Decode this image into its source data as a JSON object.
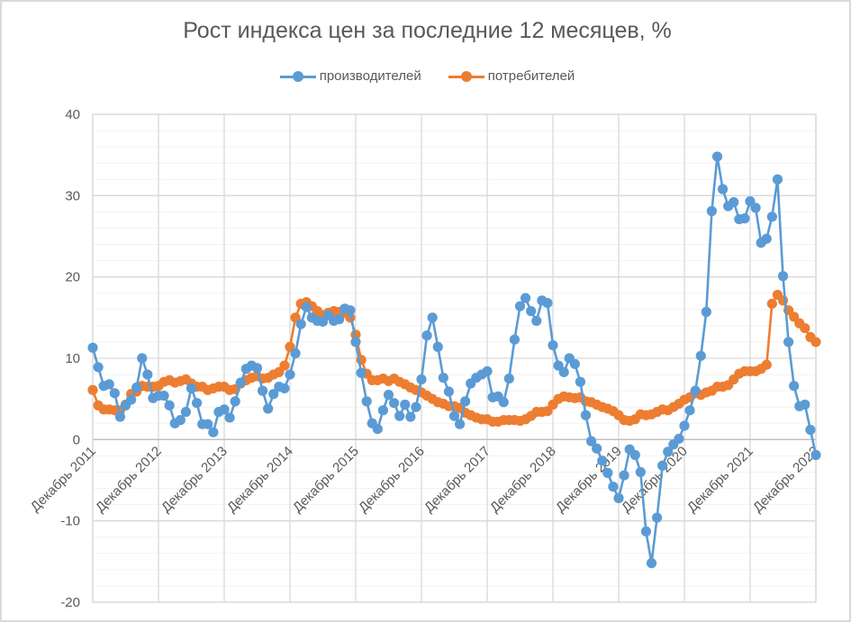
{
  "chart_data": {
    "type": "line",
    "title": "Рост индекса цен за последние 12 месяцев, %",
    "xlabel": "",
    "ylabel": "",
    "ylim": [
      -20,
      40
    ],
    "yticks": [
      -20,
      -10,
      0,
      10,
      20,
      30,
      40
    ],
    "y_minor_step": 2,
    "grid": true,
    "legend_position": "top",
    "x_start": "Декабрь 2011",
    "x_end": "Декабрь 2022",
    "x_frequency": "monthly",
    "x_tick_labels": [
      "Декабрь 2011",
      "Декабрь 2012",
      "Декабрь 2013",
      "Декабрь 2014",
      "Декабрь 2015",
      "Декабрь 2016",
      "Декабрь 2017",
      "Декабрь 2018",
      "Декабрь 2019",
      "Декабрь 2020",
      "Декабрь 2021",
      "Декабрь 2022"
    ],
    "series": [
      {
        "name": "производителей",
        "color": "#5b9bd5",
        "values": [
          11.3,
          8.9,
          6.6,
          6.8,
          5.7,
          2.8,
          4.2,
          4.9,
          6.4,
          10.0,
          8.0,
          5.1,
          5.4,
          5.4,
          4.2,
          2.0,
          2.4,
          3.4,
          6.3,
          4.5,
          1.9,
          1.9,
          0.9,
          3.4,
          3.7,
          2.7,
          4.7,
          7.0,
          8.7,
          9.1,
          8.8,
          6.0,
          3.8,
          5.6,
          6.5,
          6.3,
          8.0,
          10.6,
          14.2,
          16.3,
          15.0,
          14.6,
          14.5,
          15.3,
          14.6,
          14.8,
          16.1,
          15.9,
          12.0,
          8.2,
          4.7,
          2.0,
          1.3,
          3.6,
          5.5,
          4.5,
          2.9,
          4.3,
          2.8,
          4.0,
          7.4,
          12.8,
          15.0,
          11.4,
          7.6,
          5.9,
          2.9,
          1.9,
          4.7,
          6.9,
          7.6,
          8.0,
          8.4,
          5.2,
          5.3,
          4.6,
          7.5,
          12.3,
          16.4,
          17.4,
          15.8,
          14.6,
          17.1,
          16.8,
          11.6,
          9.1,
          8.3,
          10.0,
          9.3,
          7.1,
          3.0,
          -0.2,
          -1.1,
          -2.6,
          -4.1,
          -5.8,
          -7.2,
          -4.4,
          -1.2,
          -1.9,
          -4.0,
          -11.3,
          -15.2,
          -9.6,
          -3.2,
          -1.5,
          -0.6,
          0.1,
          1.7,
          3.6,
          6.0,
          10.3,
          15.7,
          28.1,
          34.8,
          30.8,
          28.7,
          29.2,
          27.1,
          27.2,
          29.3,
          28.5,
          24.2,
          24.7,
          27.4,
          32.0,
          20.1,
          12.0,
          6.6,
          4.1,
          4.3,
          1.2,
          -1.9
        ]
      },
      {
        "name": "потребителей",
        "color": "#ed7d31",
        "values": [
          6.1,
          4.2,
          3.7,
          3.7,
          3.6,
          3.6,
          4.3,
          5.6,
          5.9,
          6.6,
          6.5,
          6.5,
          6.6,
          7.1,
          7.3,
          7.0,
          7.2,
          7.4,
          6.9,
          6.5,
          6.5,
          6.1,
          6.3,
          6.5,
          6.5,
          6.1,
          6.2,
          6.9,
          7.3,
          7.6,
          7.8,
          7.5,
          7.6,
          8.0,
          8.3,
          9.1,
          11.4,
          15.0,
          16.7,
          16.9,
          16.4,
          15.8,
          15.3,
          15.6,
          15.8,
          15.7,
          15.6,
          15.0,
          12.9,
          9.8,
          8.1,
          7.3,
          7.3,
          7.5,
          7.2,
          7.5,
          7.1,
          6.8,
          6.4,
          6.1,
          5.8,
          5.4,
          5.0,
          4.6,
          4.4,
          4.1,
          4.1,
          3.9,
          3.3,
          3.0,
          2.7,
          2.5,
          2.5,
          2.2,
          2.2,
          2.4,
          2.4,
          2.4,
          2.3,
          2.5,
          2.9,
          3.4,
          3.4,
          3.5,
          4.3,
          5.0,
          5.3,
          5.2,
          5.1,
          5.2,
          4.7,
          4.6,
          4.3,
          4.0,
          3.8,
          3.5,
          3.0,
          2.4,
          2.3,
          2.5,
          3.1,
          3.0,
          3.1,
          3.4,
          3.7,
          3.6,
          4.0,
          4.4,
          4.9,
          5.2,
          5.7,
          5.5,
          5.8,
          6.0,
          6.5,
          6.5,
          6.7,
          7.4,
          8.1,
          8.4,
          8.4,
          8.4,
          8.7,
          9.2,
          16.7,
          17.8,
          17.1,
          15.9,
          15.1,
          14.3,
          13.7,
          12.6,
          12.0
        ]
      }
    ]
  },
  "legend": {
    "items": [
      {
        "label": "производителей",
        "color": "#5b9bd5"
      },
      {
        "label": "потребителей",
        "color": "#ed7d31"
      }
    ]
  },
  "colors": {
    "gridline_major": "#d9d9d9",
    "gridline_minor": "#f2f2f2",
    "text": "#595959",
    "border": "#d9d9d9"
  }
}
